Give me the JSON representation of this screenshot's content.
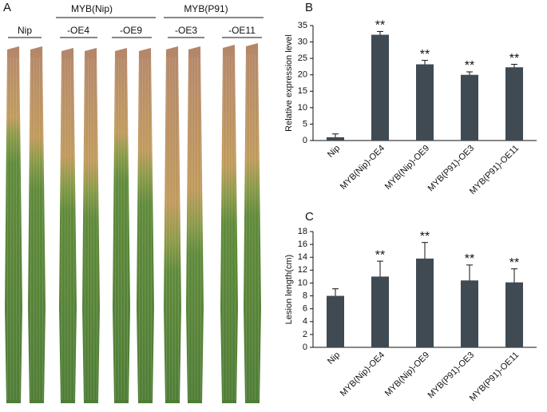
{
  "photo": {
    "panel": "A",
    "groups": [
      "MYB(Nip)",
      "MYB(P91)"
    ],
    "lines": [
      "Nip",
      "-OE4",
      "-OE9",
      "-OE3",
      "-OE11"
    ]
  },
  "chart_data": [
    {
      "type": "bar",
      "panel": "B",
      "y_label": "Relative expression level",
      "categories": [
        "Nip",
        "MYB(Nip)-OE4",
        "MYB(Nip)-OE9",
        "MYB(P91)-OE3",
        "MYB(P91)-OE11"
      ],
      "values": [
        1.0,
        32.2,
        23.2,
        20.0,
        22.3
      ],
      "errors": [
        1.0,
        1.0,
        1.2,
        0.9,
        0.9
      ],
      "significance": [
        null,
        "**",
        "**",
        "**",
        "**"
      ],
      "color": "#3f4a52",
      "ylim": [
        0,
        35
      ],
      "yticks": [
        0,
        5,
        10,
        15,
        20,
        25,
        30,
        35
      ]
    },
    {
      "type": "bar",
      "panel": "C",
      "y_label": "Lesion length(cm)",
      "categories": [
        "Nip",
        "MYB(Nip)-OE4",
        "MYB(Nip)-OE9",
        "MYB(P91)-OE3",
        "MYB(P91)-OE11"
      ],
      "values": [
        8.0,
        11.0,
        13.8,
        10.4,
        10.1
      ],
      "errors": [
        1.1,
        2.4,
        2.5,
        2.4,
        2.1
      ],
      "significance": [
        null,
        "**",
        "**",
        "**",
        "**"
      ],
      "color": "#3f4a52",
      "ylim": [
        0,
        18
      ],
      "yticks": [
        0,
        2,
        4,
        6,
        8,
        10,
        12,
        14,
        16,
        18
      ]
    }
  ]
}
